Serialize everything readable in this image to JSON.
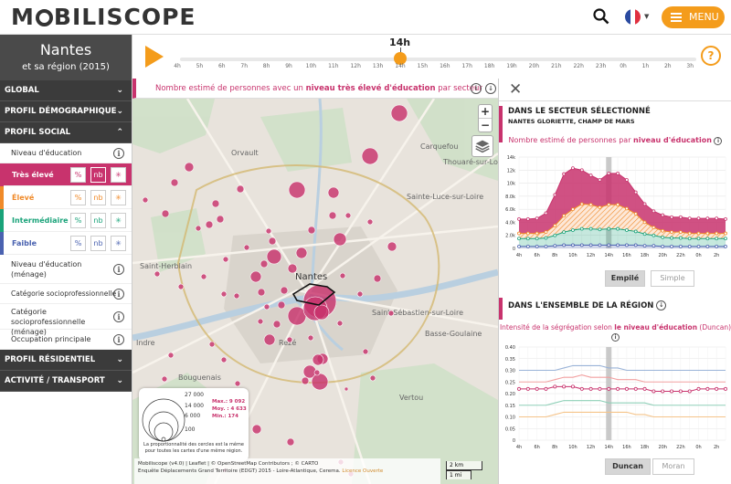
{
  "app": {
    "logo_pre": "M",
    "logo_post": "BILISCOPE",
    "menu_label": "MENU"
  },
  "city": {
    "name": "Nantes",
    "subtitle": "et sa région (2015)"
  },
  "sections": {
    "global": "GLOBAL",
    "demographic": "PROFIL DÉMOGRAPHIQUE",
    "social": "PROFIL SOCIAL",
    "residential": "PROFIL RÉSIDENTIEL",
    "activity": "ACTIVITÉ / TRANSPORT"
  },
  "social_items": {
    "niveau": "Niveau d'éducation",
    "modalities": [
      {
        "label": "Très élevé",
        "color": "#c8336d",
        "selected": true
      },
      {
        "label": "Élevé",
        "color": "#f08a29"
      },
      {
        "label": "Intermédiaire",
        "color": "#1aa37a"
      },
      {
        "label": "Faible",
        "color": "#4a62b0"
      }
    ],
    "btn_pct": "%",
    "btn_nb": "nb",
    "btn_star": "✳",
    "menage": "Niveau d'éducation (ménage)",
    "csp": "Catégorie socioprofessionnelle",
    "csp_menage": "Catégorie socioprofessionnelle (ménage)",
    "occupation": "Occupation principale"
  },
  "timeline": {
    "current": "14h",
    "hours": [
      "4h",
      "5h",
      "6h",
      "7h",
      "8h",
      "9h",
      "10h",
      "11h",
      "12h",
      "13h",
      "14h",
      "15h",
      "16h",
      "17h",
      "18h",
      "19h",
      "20h",
      "21h",
      "22h",
      "23h",
      "0h",
      "1h",
      "2h",
      "3h"
    ],
    "current_index": 10
  },
  "map": {
    "title_pre": "Nombre estimé de personnes avec un ",
    "title_bold": "niveau très élevé d'éducation",
    "title_post": " par secteur",
    "zoom_in": "+",
    "zoom_out": "−",
    "places": [
      "Saint-Herblain",
      "Nantes",
      "Orvault",
      "Carquefou",
      "Sainte-Luce-sur-Loire",
      "Saint-Sébastien-sur-Loire",
      "Rezé",
      "Bouguenais",
      "Vertou",
      "Thouaré-sur-Loire",
      "Basse-Goulaine",
      "Indre"
    ],
    "legend": {
      "values": [
        "27 000",
        "14 000",
        "6 000",
        "100"
      ],
      "max": "Max.: 9 092",
      "moy": "Moy. : 4 633",
      "min": "Min.: 174",
      "note": "La proportionnalité des cercles est la même pour toutes les cartes d'une même région."
    },
    "attribution_1": "Mobiliscope (v4.0) | Leaflet | © OpenStreetMap Contributors ; © CARTO",
    "attribution_2": "Enquête Déplacements Grand Territoire (EDGT) 2015 - Loire-Atlantique, Cerema.",
    "licence": "Licence Ouverte",
    "scale_km": "2 km",
    "scale_mi": "1 mi"
  },
  "sector_panel": {
    "heading": "DANS LE SECTEUR SÉLECTIONNÉ",
    "sector_name": "NANTES GLORIETTE, CHAMP DE MARS",
    "chart_title_pre": "Nombre estimé de personnes par ",
    "chart_title_bold": "niveau d'éducation",
    "btn_stacked": "Empilé",
    "btn_simple": "Simple"
  },
  "region_panel": {
    "heading": "DANS L'ENSEMBLE DE LA RÉGION",
    "chart_title_pre": "Intensité de la ségrégation selon ",
    "chart_title_bold": "le niveau d'éducation",
    "chart_title_post": " (Duncan)",
    "btn_duncan": "Duncan",
    "btn_moran": "Moran"
  },
  "chart_data": [
    {
      "type": "area",
      "stacked": true,
      "x": [
        "4h",
        "5h",
        "6h",
        "7h",
        "8h",
        "9h",
        "10h",
        "11h",
        "12h",
        "13h",
        "14h",
        "15h",
        "16h",
        "17h",
        "18h",
        "19h",
        "20h",
        "21h",
        "22h",
        "23h",
        "0h",
        "1h",
        "2h",
        "3h"
      ],
      "x_ticks": [
        "4h",
        "6h",
        "8h",
        "10h",
        "12h",
        "14h",
        "16h",
        "18h",
        "20h",
        "22h",
        "0h",
        "2h"
      ],
      "yticks": [
        0,
        2000,
        4000,
        6000,
        8000,
        10000,
        12000,
        14000
      ],
      "ytick_labels": [
        "0",
        "2.0k",
        "4.0k",
        "6.0k",
        "8.0k",
        "10k",
        "12k",
        "14k"
      ],
      "ylim": [
        0,
        14000
      ],
      "highlight_x": "14h",
      "series": [
        {
          "color": "#4a62b0",
          "values": [
            300,
            300,
            300,
            300,
            400,
            500,
            500,
            500,
            500,
            500,
            500,
            500,
            500,
            500,
            400,
            400,
            300,
            300,
            300,
            300,
            300,
            300,
            300,
            300
          ]
        },
        {
          "color": "#1aa37a",
          "values": [
            1200,
            1200,
            1200,
            1300,
            1600,
            2000,
            2300,
            2500,
            2500,
            2400,
            2500,
            2500,
            2300,
            2100,
            1800,
            1600,
            1400,
            1300,
            1300,
            1200,
            1200,
            1200,
            1200,
            1200
          ]
        },
        {
          "color": "#f08a29",
          "values": [
            800,
            800,
            800,
            900,
            1500,
            2500,
            3200,
            3800,
            3700,
            3400,
            3700,
            3700,
            3300,
            2700,
            1800,
            1200,
            1000,
            900,
            900,
            800,
            800,
            800,
            800,
            800
          ]
        },
        {
          "color": "#c8336d",
          "values": [
            2200,
            2200,
            2300,
            2900,
            4700,
            6400,
            6300,
            5200,
            4500,
            4200,
            4800,
            4800,
            4400,
            3300,
            2800,
            2500,
            2400,
            2300,
            2300,
            2300,
            2300,
            2300,
            2300,
            2200
          ]
        }
      ]
    },
    {
      "type": "line",
      "x": [
        "4h",
        "5h",
        "6h",
        "7h",
        "8h",
        "9h",
        "10h",
        "11h",
        "12h",
        "13h",
        "14h",
        "15h",
        "16h",
        "17h",
        "18h",
        "19h",
        "20h",
        "21h",
        "22h",
        "23h",
        "0h",
        "1h",
        "2h",
        "3h"
      ],
      "x_ticks": [
        "4h",
        "6h",
        "8h",
        "10h",
        "12h",
        "14h",
        "16h",
        "18h",
        "20h",
        "22h",
        "0h",
        "2h"
      ],
      "yticks": [
        0,
        0.05,
        0.1,
        0.15,
        0.2,
        0.25,
        0.3,
        0.35,
        0.4
      ],
      "ytick_labels": [
        "0",
        "0.05",
        "0.10",
        "0.15",
        "0.20",
        "0.25",
        "0.30",
        "0.35",
        "0.40"
      ],
      "ylim": [
        0,
        0.4
      ],
      "highlight_x": "14h",
      "series": [
        {
          "color": "#9ab3d8",
          "values": [
            0.3,
            0.3,
            0.3,
            0.3,
            0.3,
            0.31,
            0.32,
            0.32,
            0.32,
            0.32,
            0.31,
            0.31,
            0.3,
            0.3,
            0.3,
            0.3,
            0.3,
            0.3,
            0.3,
            0.3,
            0.3,
            0.3,
            0.3,
            0.3
          ]
        },
        {
          "color": "#f2a0a0",
          "values": [
            0.25,
            0.25,
            0.25,
            0.25,
            0.26,
            0.27,
            0.27,
            0.28,
            0.27,
            0.27,
            0.27,
            0.26,
            0.26,
            0.26,
            0.25,
            0.25,
            0.25,
            0.25,
            0.25,
            0.25,
            0.25,
            0.25,
            0.25,
            0.25
          ]
        },
        {
          "color": "#c8336d",
          "marker": true,
          "values": [
            0.22,
            0.22,
            0.22,
            0.22,
            0.23,
            0.23,
            0.23,
            0.22,
            0.22,
            0.22,
            0.22,
            0.22,
            0.22,
            0.22,
            0.22,
            0.21,
            0.21,
            0.21,
            0.21,
            0.21,
            0.22,
            0.22,
            0.22,
            0.22
          ]
        },
        {
          "color": "#8fd0b8",
          "values": [
            0.15,
            0.15,
            0.15,
            0.15,
            0.16,
            0.17,
            0.17,
            0.17,
            0.17,
            0.17,
            0.16,
            0.16,
            0.16,
            0.16,
            0.16,
            0.15,
            0.15,
            0.15,
            0.15,
            0.15,
            0.15,
            0.15,
            0.15,
            0.15
          ]
        },
        {
          "color": "#f5c48a",
          "values": [
            0.1,
            0.1,
            0.1,
            0.1,
            0.11,
            0.12,
            0.12,
            0.12,
            0.12,
            0.12,
            0.12,
            0.12,
            0.12,
            0.11,
            0.11,
            0.1,
            0.1,
            0.1,
            0.1,
            0.1,
            0.1,
            0.1,
            0.1,
            0.1
          ]
        }
      ]
    }
  ]
}
